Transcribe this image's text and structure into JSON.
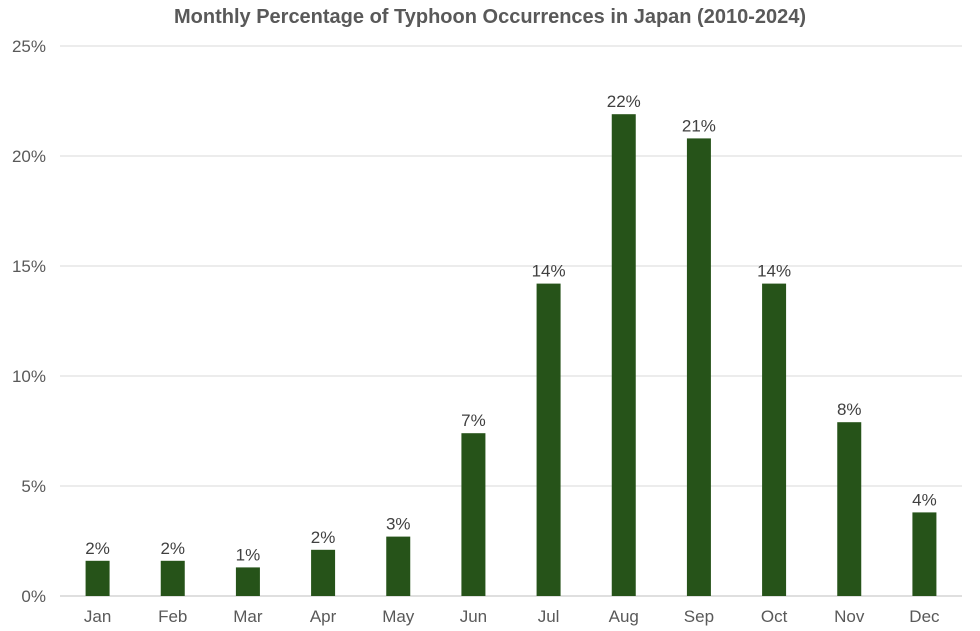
{
  "chart_data": {
    "type": "bar",
    "title": "Monthly Percentage of Typhoon Occurrences in Japan (2010-2024)",
    "xlabel": "",
    "ylabel": "",
    "categories": [
      "Jan",
      "Feb",
      "Mar",
      "Apr",
      "May",
      "Jun",
      "Jul",
      "Aug",
      "Sep",
      "Oct",
      "Nov",
      "Dec"
    ],
    "values": [
      1.6,
      1.6,
      1.3,
      2.1,
      2.7,
      7.4,
      14.2,
      21.9,
      20.8,
      14.2,
      7.9,
      3.8
    ],
    "data_labels": [
      "2%",
      "2%",
      "1%",
      "2%",
      "3%",
      "7%",
      "14%",
      "22%",
      "21%",
      "14%",
      "8%",
      "4%"
    ],
    "ylim": [
      0,
      25
    ],
    "yticks": [
      0,
      5,
      10,
      15,
      20,
      25
    ],
    "ytick_labels": [
      "0%",
      "5%",
      "10%",
      "15%",
      "20%",
      "25%"
    ],
    "grid": true,
    "legend": "none",
    "bar_color": "#265319"
  }
}
